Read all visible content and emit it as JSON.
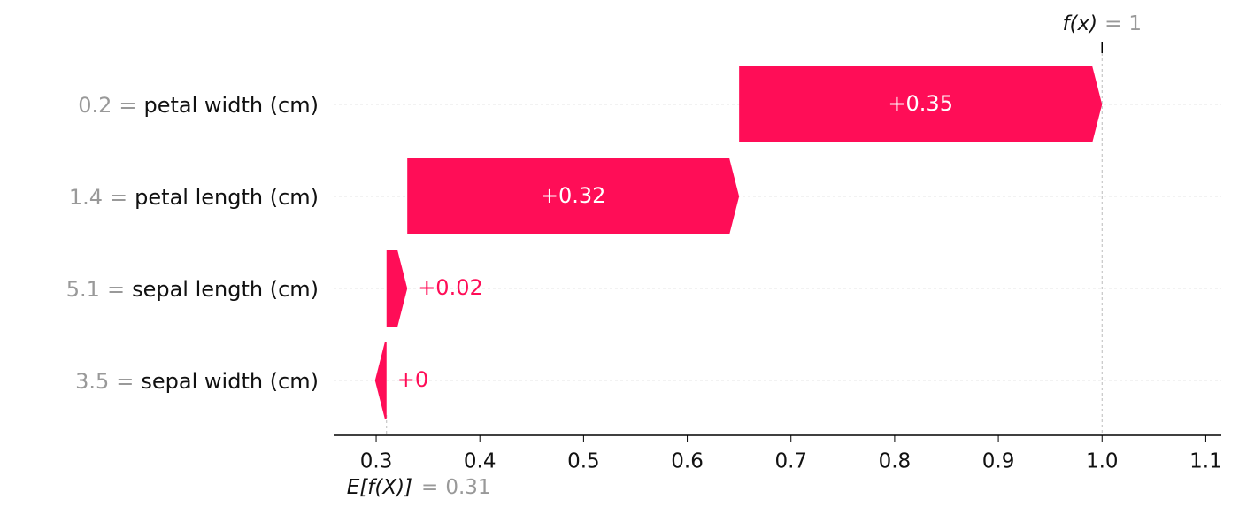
{
  "chart_data": {
    "type": "waterfall",
    "feature_values": [
      "0.2",
      "1.4",
      "5.1",
      "3.5"
    ],
    "separator": "=",
    "categories": [
      "petal width (cm)",
      "petal length (cm)",
      "sepal length (cm)",
      "sepal width (cm)"
    ],
    "values": [
      0.35,
      0.32,
      0.02,
      0
    ],
    "value_labels": [
      "+0.35",
      "+0.32",
      "+0.02",
      "+0"
    ],
    "color": "#ff0d57",
    "base_label": "E[f(X)]",
    "base_value": 0.31,
    "output_label": "f(x)",
    "output_value": 1,
    "xlim": [
      0.259,
      1.115
    ],
    "xticks": [
      0.3,
      0.4,
      0.5,
      0.6,
      0.7,
      0.8,
      0.9,
      {
        "value": 1.0,
        "label": "1.0"
      },
      1.1
    ],
    "grid": true
  }
}
